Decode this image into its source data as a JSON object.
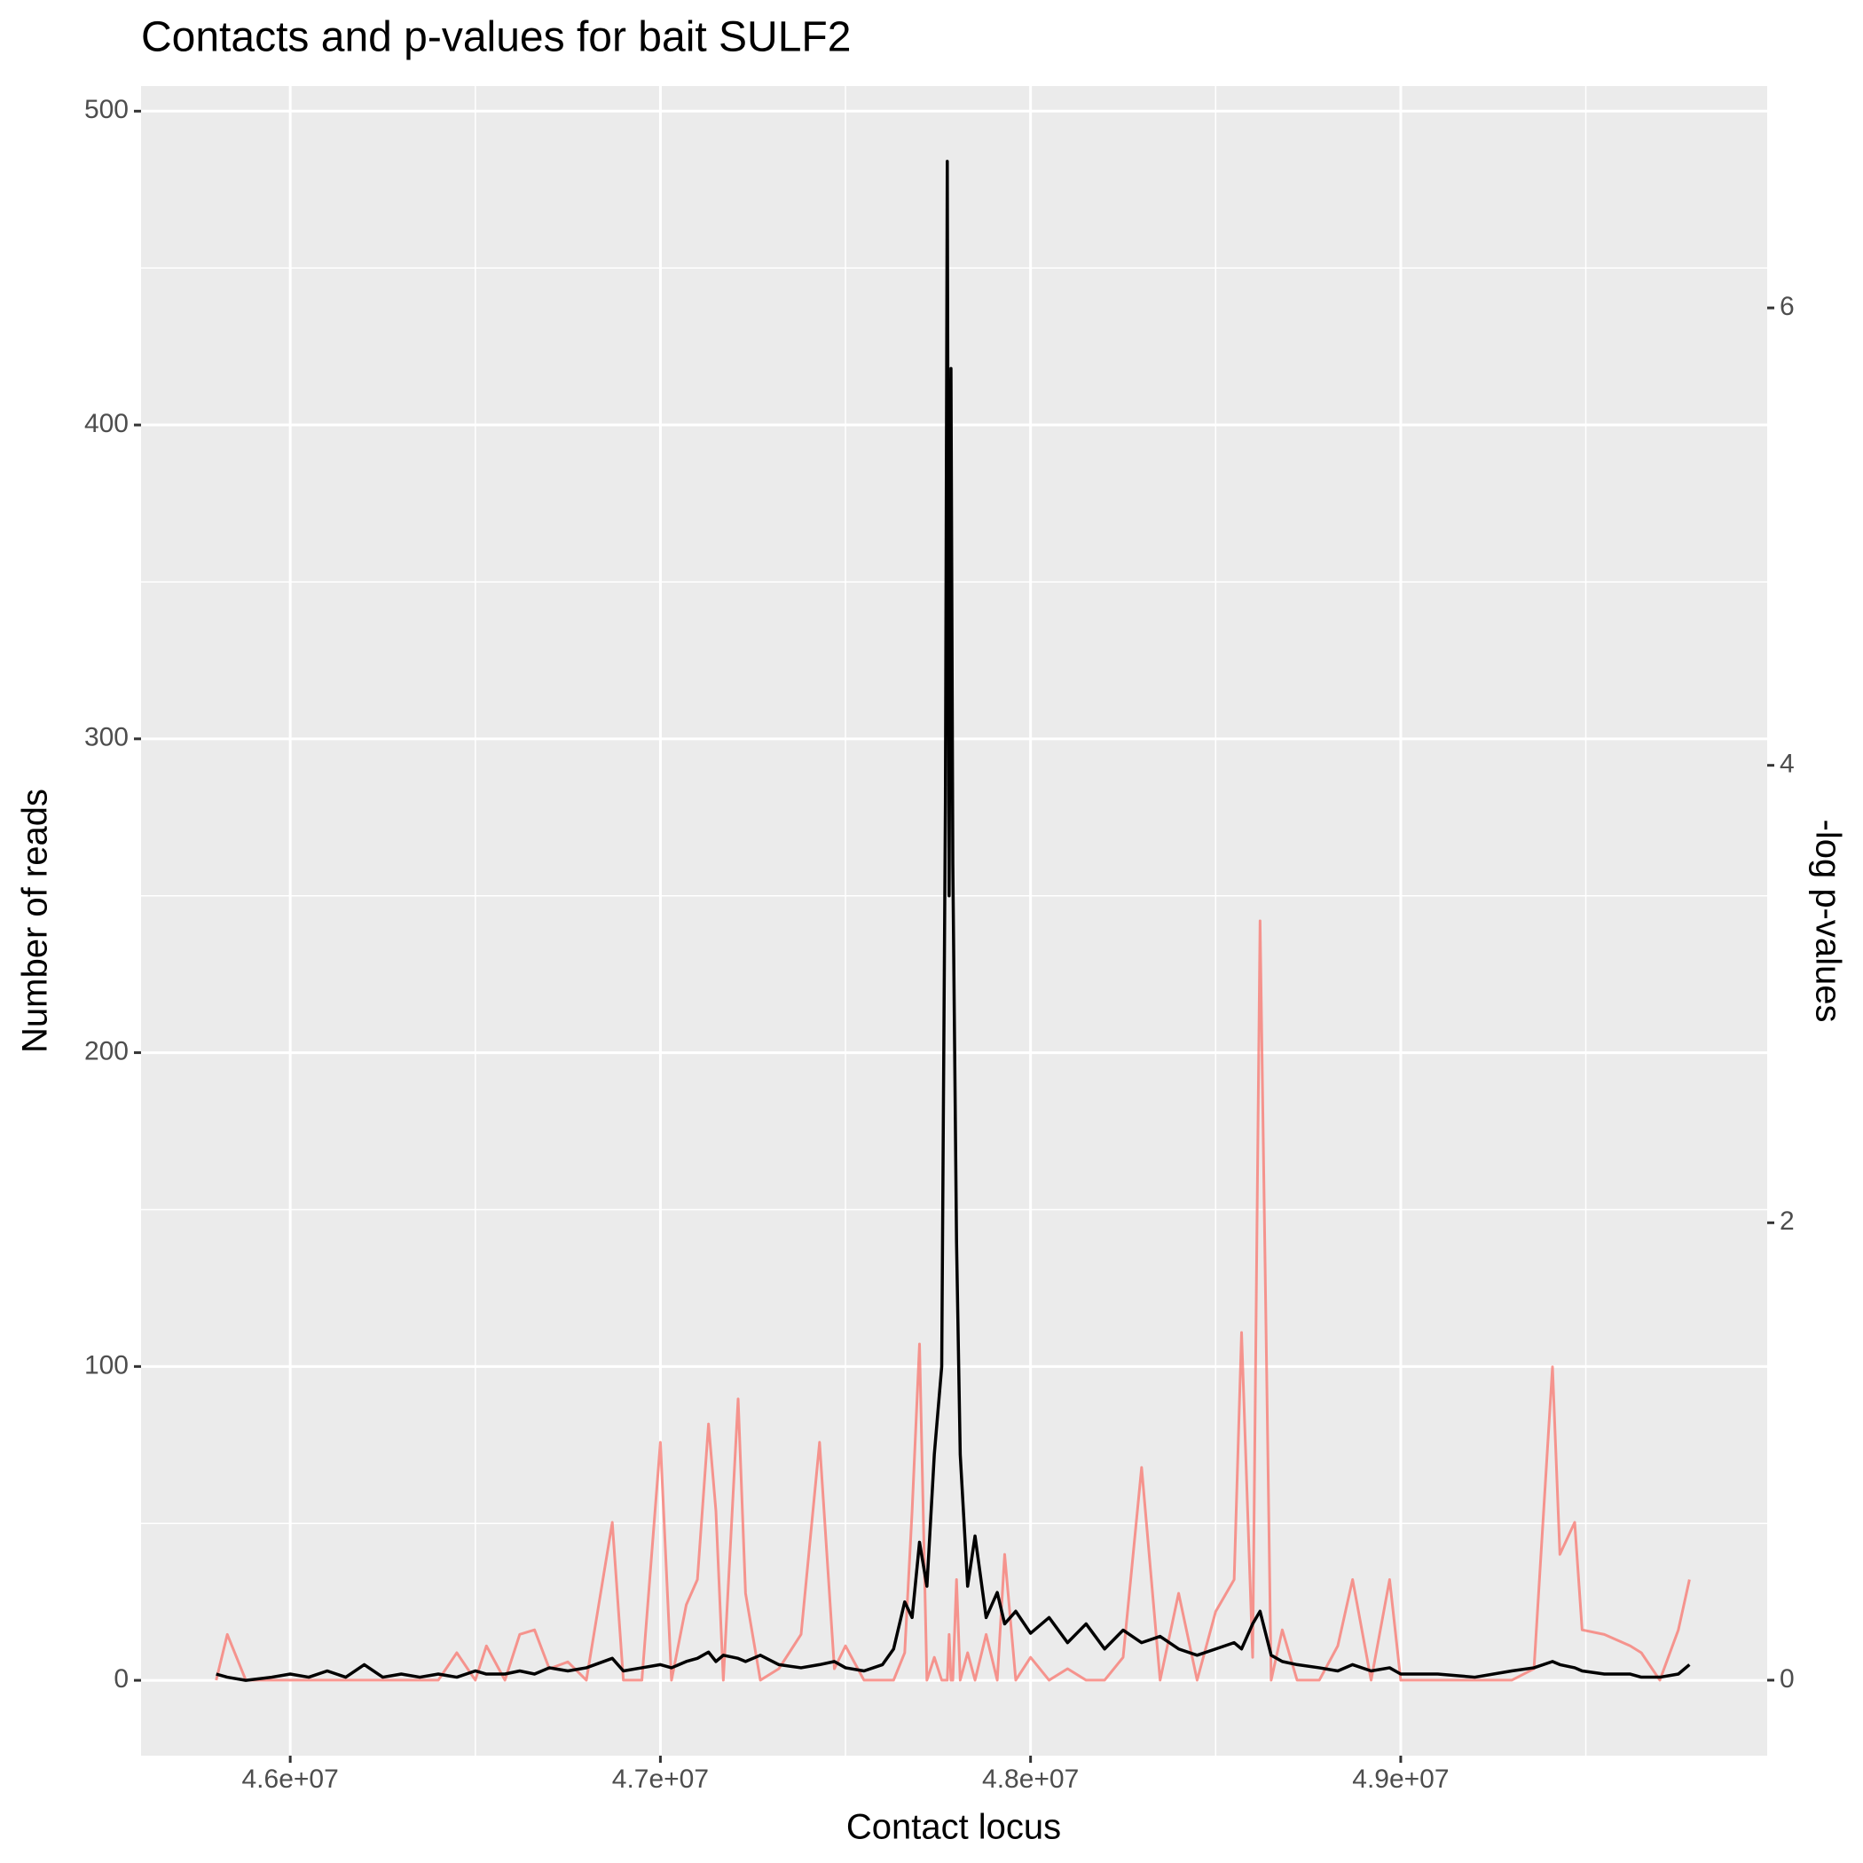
{
  "chart_data": {
    "type": "line",
    "title": "Contacts and p-values for bait SULF2",
    "x_label": "Contact locus",
    "y_label": "Number of reads",
    "y2_label": "-log p-values",
    "x": [
      45800000,
      45830000,
      45880000,
      45950000,
      46000000,
      46050000,
      46100000,
      46150000,
      46200000,
      46250000,
      46300000,
      46350000,
      46400000,
      46450000,
      46500000,
      46530000,
      46580000,
      46620000,
      46660000,
      46700000,
      46750000,
      46800000,
      46870000,
      46900000,
      46950000,
      47000000,
      47030000,
      47070000,
      47100000,
      47130000,
      47150000,
      47170000,
      47210000,
      47230000,
      47270000,
      47320000,
      47380000,
      47430000,
      47470000,
      47500000,
      47550000,
      47600000,
      47630000,
      47660000,
      47680000,
      47700000,
      47720000,
      47740000,
      47760000,
      47770000,
      47775000,
      47780000,
      47785000,
      47790000,
      47800000,
      47810000,
      47830000,
      47850000,
      47880000,
      47910000,
      47930000,
      47960000,
      48000000,
      48050000,
      48100000,
      48150000,
      48200000,
      48250000,
      48300000,
      48350000,
      48400000,
      48450000,
      48500000,
      48550000,
      48570000,
      48600000,
      48620000,
      48650000,
      48680000,
      48720000,
      48780000,
      48830000,
      48870000,
      48920000,
      48970000,
      49000000,
      49100000,
      49200000,
      49300000,
      49360000,
      49410000,
      49430000,
      49470000,
      49490000,
      49550000,
      49620000,
      49650000,
      49700000,
      49750000,
      49780000
    ],
    "series": [
      {
        "name": "-log p-values",
        "color": "#f8766d",
        "axis": "y2",
        "values": [
          0,
          0.2,
          0,
          0,
          0,
          0,
          0,
          0,
          0,
          0,
          0,
          0,
          0,
          0.12,
          0,
          0.15,
          0,
          0.2,
          0.22,
          0.05,
          0.08,
          0,
          0.69,
          0,
          0,
          1.04,
          0,
          0.33,
          0.44,
          1.12,
          0.74,
          0,
          1.23,
          0.38,
          0,
          0.05,
          0.2,
          1.04,
          0.05,
          0.15,
          0,
          0,
          0,
          0.12,
          0.74,
          1.47,
          0,
          0.1,
          0,
          0,
          0,
          0.2,
          0,
          0,
          0.44,
          0,
          0.12,
          0,
          0.2,
          0,
          0.55,
          0,
          0.1,
          0,
          0.05,
          0,
          0,
          0.1,
          0.93,
          0,
          0.38,
          0,
          0.3,
          0.44,
          1.52,
          0.1,
          3.32,
          0,
          0.22,
          0,
          0,
          0.15,
          0.44,
          0,
          0.44,
          0,
          0,
          0,
          0,
          0.05,
          1.37,
          0.55,
          0.69,
          0.22,
          0.2,
          0.15,
          0.12,
          0,
          0.22,
          0.44
        ]
      },
      {
        "name": "Number of reads",
        "color": "#000000",
        "axis": "y",
        "values": [
          2,
          1,
          0,
          1,
          2,
          1,
          3,
          1,
          5,
          1,
          2,
          1,
          2,
          1,
          3,
          2,
          2,
          3,
          2,
          4,
          3,
          4,
          7,
          3,
          4,
          5,
          4,
          6,
          7,
          9,
          6,
          8,
          7,
          6,
          8,
          5,
          4,
          5,
          6,
          4,
          3,
          5,
          10,
          25,
          20,
          44,
          30,
          72,
          100,
          280,
          484,
          250,
          418,
          260,
          140,
          72,
          30,
          46,
          20,
          28,
          18,
          22,
          15,
          20,
          12,
          18,
          10,
          16,
          12,
          14,
          10,
          8,
          10,
          12,
          10,
          18,
          22,
          8,
          6,
          5,
          4,
          3,
          5,
          3,
          4,
          2,
          2,
          1,
          3,
          4,
          6,
          5,
          4,
          3,
          2,
          2,
          1,
          1,
          2,
          5
        ]
      }
    ],
    "xlim": [
      45597000,
      49990000
    ],
    "xticks": [
      {
        "value": 46000000,
        "label": "4.6e+07"
      },
      {
        "value": 47000000,
        "label": "4.7e+07"
      },
      {
        "value": 48000000,
        "label": "4.8e+07"
      },
      {
        "value": 49000000,
        "label": "4.9e+07"
      }
    ],
    "ylim": [
      -24,
      508
    ],
    "yticks": [
      0,
      100,
      200,
      300,
      400,
      500
    ],
    "y2lim": [
      -0.33,
      6.97
    ],
    "y2ticks": [
      0,
      2,
      4,
      6
    ],
    "grid": true
  }
}
